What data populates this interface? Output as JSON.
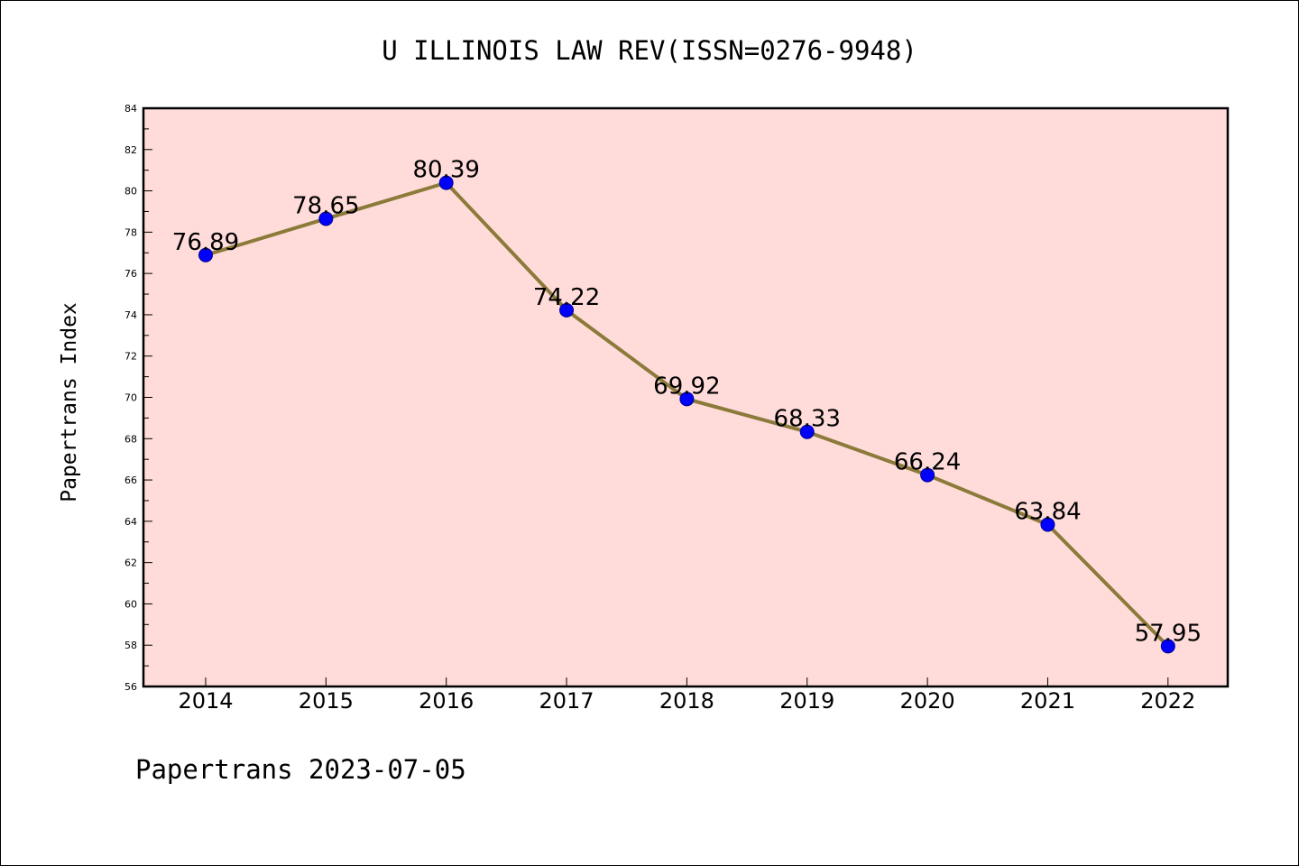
{
  "chart_data": {
    "type": "line",
    "title": "U ILLINOIS LAW REV(ISSN=0276-9948)",
    "ylabel": "Papertrans Index",
    "xlabel": "",
    "footer": "Papertrans 2023-07-05",
    "categories": [
      "2014",
      "2015",
      "2016",
      "2017",
      "2018",
      "2019",
      "2020",
      "2021",
      "2022"
    ],
    "values": [
      76.89,
      78.65,
      80.39,
      74.22,
      69.92,
      68.33,
      66.24,
      63.84,
      57.95
    ],
    "value_labels": [
      "76.89",
      "78.65",
      "80.39",
      "74.22",
      "69.92",
      "68.33",
      "66.24",
      "63.84",
      "57.95"
    ],
    "ylim": [
      56,
      84
    ],
    "yticks": [
      "56",
      "58",
      "60",
      "62",
      "64",
      "66",
      "68",
      "70",
      "72",
      "74",
      "76",
      "78",
      "80",
      "82",
      "84"
    ],
    "grid": false,
    "legend": "none",
    "colors": {
      "plot_background": "#FFDCDA",
      "line": "#8C7A3A",
      "marker": "#0000FF"
    }
  }
}
